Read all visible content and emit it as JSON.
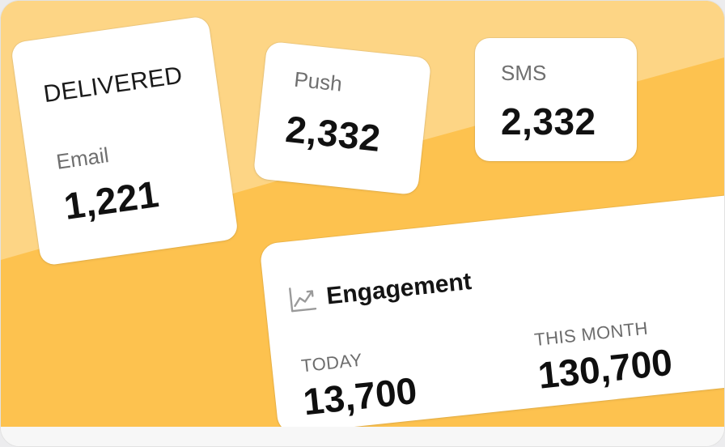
{
  "delivered": {
    "heading": "DELIVERED",
    "email_label": "Email",
    "email_value": "1,221"
  },
  "push": {
    "label": "Push",
    "value": "2,332"
  },
  "sms": {
    "label": "SMS",
    "value": "2,332"
  },
  "engagement": {
    "icon": "trend-chart-icon",
    "title": "Engagement",
    "today_label": "TODAY",
    "today_value": "13,700",
    "month_label": "THIS MONTH",
    "month_value": "130,700"
  },
  "colors": {
    "background": "#fdc24f",
    "background_light": "#fdd88e",
    "card": "#ffffff"
  }
}
